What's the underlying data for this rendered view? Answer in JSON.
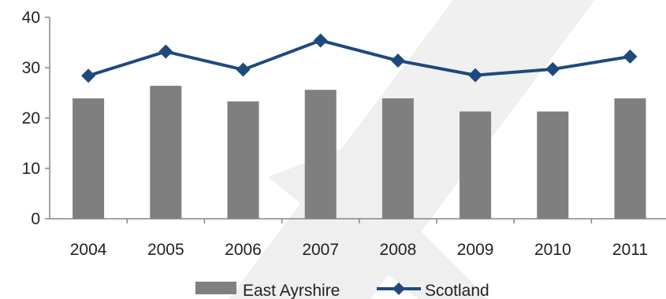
{
  "chart_data": {
    "type": "bar",
    "categories": [
      "2004",
      "2005",
      "2006",
      "2007",
      "2008",
      "2009",
      "2010",
      "2011"
    ],
    "series": [
      {
        "name": "East Ayrshire",
        "type": "bar",
        "color": "#7f7f7f",
        "values": [
          23.9,
          26.4,
          23.3,
          25.6,
          23.9,
          21.3,
          21.3,
          23.9
        ]
      },
      {
        "name": "Scotland",
        "type": "line",
        "color": "#1f497d",
        "marker": "diamond",
        "values": [
          28.4,
          33.2,
          29.6,
          35.4,
          31.4,
          28.5,
          29.7,
          32.2
        ]
      }
    ],
    "ylim": [
      0,
      40
    ],
    "yticks": [
      "0",
      "10",
      "20",
      "30",
      "40"
    ],
    "grid": false,
    "legend_position": "bottom"
  }
}
